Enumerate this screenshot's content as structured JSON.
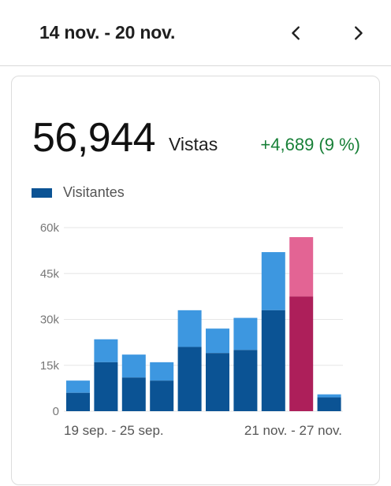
{
  "header": {
    "range_title": "14 nov. - 20 nov.",
    "prev_icon": "chevron-left-icon",
    "next_icon": "chevron-right-icon"
  },
  "summary": {
    "views_count": "56,944",
    "views_label": "Vistas",
    "views_delta": "+4,689 (9 %)",
    "delta_color": "#188038"
  },
  "chart_data": {
    "type": "bar",
    "legend": [
      "Visitantes"
    ],
    "y_ticks": [
      "60k",
      "45k",
      "30k",
      "15k",
      "0"
    ],
    "ylim": [
      0,
      60000
    ],
    "x_labels": [
      "19 sep. - 25 sep.",
      "21 nov. - 27 nov."
    ],
    "bars": [
      {
        "visitors": 6000,
        "total": 10000
      },
      {
        "visitors": 16000,
        "total": 23500
      },
      {
        "visitors": 11000,
        "total": 18500
      },
      {
        "visitors": 10000,
        "total": 16000
      },
      {
        "visitors": 21000,
        "total": 33000
      },
      {
        "visitors": 19000,
        "total": 27000
      },
      {
        "visitors": 20000,
        "total": 30500
      },
      {
        "visitors": 33000,
        "total": 52000
      },
      {
        "visitors": 37500,
        "total": 56900,
        "highlight": true
      },
      {
        "visitors": 4500,
        "total": 5500
      }
    ],
    "colors": {
      "visitors": "#0b5394",
      "views": "#3d97e0",
      "visitors_highlight": "#ad1f5a",
      "views_highlight": "#e36494",
      "grid": "#e6e6e6"
    }
  }
}
